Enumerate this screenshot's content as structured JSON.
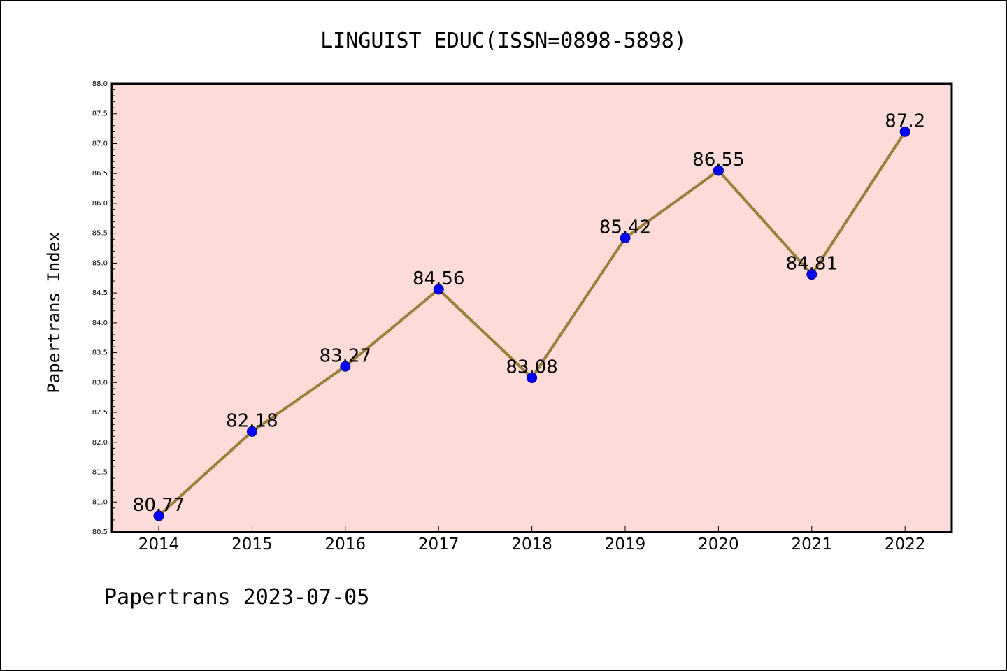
{
  "colors": {
    "plot_background": "#fddbd8",
    "line": "#9a7f3c",
    "marker": "#0000ff",
    "marker_edge": "#000080",
    "frame": "#000000",
    "figure_background": "#ffffff"
  },
  "chart_data": {
    "type": "line",
    "title": "LINGUIST EDUC(ISSN=0898-5898)",
    "xlabel": "",
    "ylabel": "Papertrans Index",
    "categories": [
      "2014",
      "2015",
      "2016",
      "2017",
      "2018",
      "2019",
      "2020",
      "2021",
      "2022"
    ],
    "series": [
      {
        "values": [
          80.77,
          82.18,
          83.27,
          84.56,
          83.08,
          85.42,
          86.55,
          84.81,
          87.2
        ],
        "labels": [
          "80.77",
          "82.18",
          "83.27",
          "84.56",
          "83.08",
          "85.42",
          "86.55",
          "84.81",
          "87.2"
        ]
      }
    ],
    "ylim": [
      80.5,
      88.0
    ],
    "yticks": [
      "80.5",
      "81.0",
      "81.5",
      "82.0",
      "82.5",
      "83.0",
      "83.5",
      "84.0",
      "84.5",
      "85.0",
      "85.5",
      "86.0",
      "86.5",
      "87.0",
      "87.5",
      "88.0"
    ],
    "grid": false,
    "legend": "none"
  },
  "footer": {
    "text": "Papertrans 2023-07-05"
  }
}
